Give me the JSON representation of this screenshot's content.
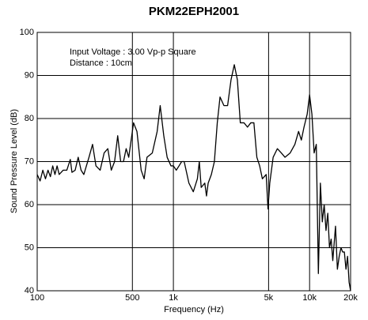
{
  "chart_data": {
    "type": "line",
    "title": "PKM22EPH2001",
    "xlabel": "Frequency (Hz)",
    "ylabel": "Sound Pressure Level (dB)",
    "annotations": [
      "Input Voltage : 3.00 Vp-p Square",
      "Distance : 10cm"
    ],
    "xscale": "log",
    "grid": true,
    "color": "#000000",
    "xlim": [
      100,
      20000
    ],
    "xticks": [
      100,
      500,
      {
        "value": 1000,
        "label": "1k"
      },
      {
        "value": 5000,
        "label": "5k"
      },
      {
        "value": 10000,
        "label": "10k"
      },
      {
        "value": 20000,
        "label": "20k"
      }
    ],
    "ylim": [
      40,
      100
    ],
    "yticks": [
      40,
      50,
      60,
      70,
      80,
      90,
      100
    ],
    "x": [
      100,
      105,
      110,
      115,
      120,
      125,
      130,
      135,
      140,
      145,
      155,
      165,
      175,
      180,
      190,
      200,
      210,
      220,
      240,
      255,
      270,
      290,
      310,
      330,
      350,
      370,
      390,
      410,
      430,
      450,
      470,
      510,
      540,
      580,
      610,
      640,
      700,
      760,
      800,
      850,
      900,
      960,
      1000,
      1050,
      1100,
      1150,
      1200,
      1300,
      1400,
      1500,
      1550,
      1600,
      1700,
      1750,
      1800,
      1900,
      2000,
      2100,
      2200,
      2350,
      2500,
      2650,
      2800,
      2950,
      3100,
      3300,
      3500,
      3700,
      3900,
      4100,
      4300,
      4500,
      4800,
      4950,
      5100,
      5400,
      5800,
      6200,
      6600,
      7200,
      7800,
      8300,
      8700,
      9100,
      9600,
      10000,
      10400,
      10800,
      11200,
      11600,
      12000,
      12400,
      12800,
      13200,
      13600,
      14000,
      14400,
      14800,
      15500,
      16000,
      16500,
      17000,
      17500,
      18000,
      18500,
      19000,
      19500,
      20000
    ],
    "values": [
      67,
      65.5,
      68,
      66,
      68,
      66.5,
      69,
      67,
      69,
      67,
      68,
      68,
      70.5,
      67.5,
      68,
      71,
      68,
      67,
      71,
      74,
      69,
      68,
      72,
      73,
      68,
      70,
      76,
      70,
      70,
      73,
      71,
      79,
      77,
      68,
      66,
      71,
      72,
      77,
      83,
      76,
      71,
      69,
      69,
      68,
      69,
      70,
      70,
      65,
      63,
      66,
      70,
      64,
      65,
      62,
      65,
      67,
      70,
      79,
      85,
      83,
      83,
      89,
      92.5,
      89,
      79,
      79,
      78,
      79,
      79,
      71,
      69,
      66,
      67,
      59,
      65,
      71,
      73,
      72,
      71,
      72,
      74,
      77,
      75,
      78,
      81,
      85.5,
      81,
      72,
      74,
      44,
      65,
      56,
      60,
      54,
      58,
      50,
      52,
      47,
      55,
      45,
      48,
      50,
      49,
      49,
      45,
      48,
      42,
      40
    ]
  }
}
